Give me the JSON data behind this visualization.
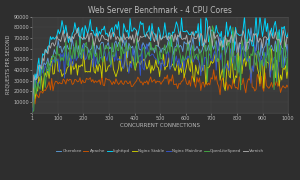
{
  "title": "Web Server Benchmark - 4 CPU Cores",
  "xlabel": "CONCURRENT CONNECTIONS",
  "ylabel": "REQUESTS PER SECOND",
  "bg_color": "#2e2e2e",
  "plot_bg_color": "#3a3a3a",
  "text_color": "#bbbbbb",
  "grid_color": "#505050",
  "x_ticks": [
    1,
    100,
    200,
    300,
    400,
    500,
    600,
    700,
    800,
    900,
    1000
  ],
  "ylim": [
    0,
    90000
  ],
  "y_ticks": [
    0,
    10000,
    20000,
    30000,
    40000,
    50000,
    60000,
    70000,
    80000,
    90000
  ],
  "y_tick_labels": [
    "",
    "10000",
    "20000",
    "30000",
    "40000",
    "50000",
    "60000",
    "70000",
    "80000",
    "90000"
  ],
  "series_names": [
    "Cherokee",
    "Apache",
    "Lighttpd",
    "Nginx Stable",
    "Nginx Mainline",
    "OpenLiteSpeed",
    "Varnish"
  ],
  "series_colors": [
    "#5b9bd5",
    "#cc5500",
    "#00d7ff",
    "#cccc00",
    "#3355cc",
    "#44aa44",
    "#aaaaaa"
  ],
  "series_base": [
    62000,
    29000,
    76000,
    42000,
    50000,
    55000,
    70000
  ],
  "series_start": [
    10000,
    5000,
    12000,
    8000,
    9000,
    10000,
    11000
  ],
  "series_noise": [
    4000,
    3000,
    5000,
    6000,
    6000,
    7000,
    3500
  ],
  "series_late_drop": [
    3000,
    6000,
    4000,
    5000,
    5500,
    6000,
    2000
  ]
}
